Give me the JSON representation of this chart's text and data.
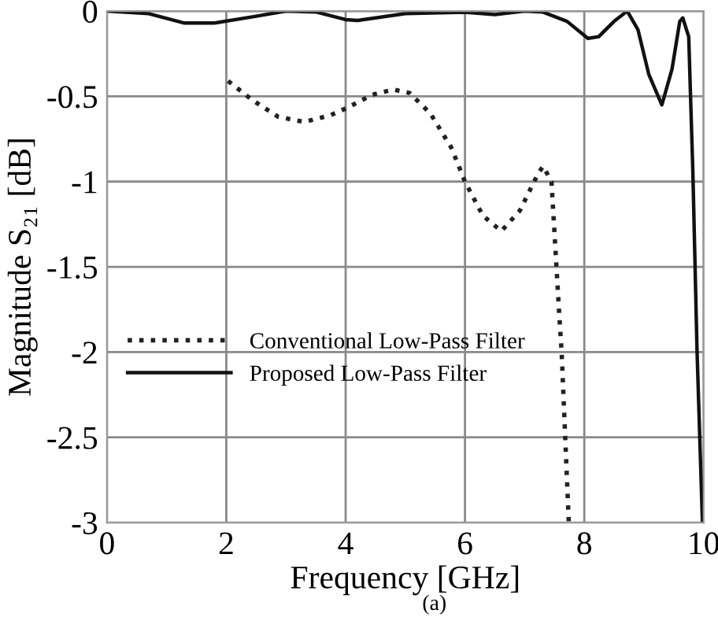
{
  "chart_data": {
    "type": "line",
    "xlabel": "Frequency [GHz]",
    "ylabel": "Magnitude S₂₁ [dB]",
    "xlim": [
      0,
      10
    ],
    "ylim": [
      -3,
      0
    ],
    "xticks": [
      0,
      2,
      4,
      6,
      8,
      10
    ],
    "yticks": [
      0,
      -0.5,
      -1,
      -1.5,
      -2,
      -2.5,
      -3
    ],
    "grid": true,
    "legend": "left",
    "marker": "none",
    "series": [
      {
        "name": "Conventional Low-Pass Filter",
        "color": "#222222",
        "line_style": "dotted",
        "x": [
          2.03,
          2.43,
          2.87,
          3.31,
          3.75,
          4.01,
          4.45,
          4.8,
          5.07,
          5.42,
          5.77,
          6.0,
          6.3,
          6.61,
          6.92,
          7.23,
          7.31,
          7.45,
          7.58,
          7.62,
          7.68,
          7.74
        ],
        "values": [
          -0.41,
          -0.52,
          -0.62,
          -0.65,
          -0.61,
          -0.57,
          -0.49,
          -0.46,
          -0.48,
          -0.6,
          -0.8,
          -1.0,
          -1.2,
          -1.29,
          -1.17,
          -0.95,
          -0.91,
          -1.0,
          -1.78,
          -2.0,
          -2.5,
          -3.0
        ]
      },
      {
        "name": "Proposed Low-Pass Filter",
        "color": "#111111",
        "line_style": "solid",
        "x": [
          0,
          0.7,
          1.3,
          1.8,
          2.5,
          3,
          3.5,
          4,
          4.2,
          5,
          6,
          6.5,
          7,
          7.3,
          7.71,
          8.06,
          8.24,
          8.5,
          8.72,
          8.9,
          9.08,
          9.3,
          9.47,
          9.6,
          9.65,
          9.75,
          9.82,
          9.89,
          9.98
        ],
        "values": [
          0,
          -0.015,
          -0.07,
          -0.07,
          -0.03,
          0,
          -0.005,
          -0.05,
          -0.055,
          -0.015,
          -0.006,
          -0.02,
          0,
          -0.005,
          -0.06,
          -0.16,
          -0.15,
          -0.06,
          0,
          -0.11,
          -0.37,
          -0.55,
          -0.34,
          -0.06,
          -0.04,
          -0.15,
          -0.95,
          -2.0,
          -3.0
        ]
      }
    ],
    "annotations": [
      "(a)"
    ]
  }
}
